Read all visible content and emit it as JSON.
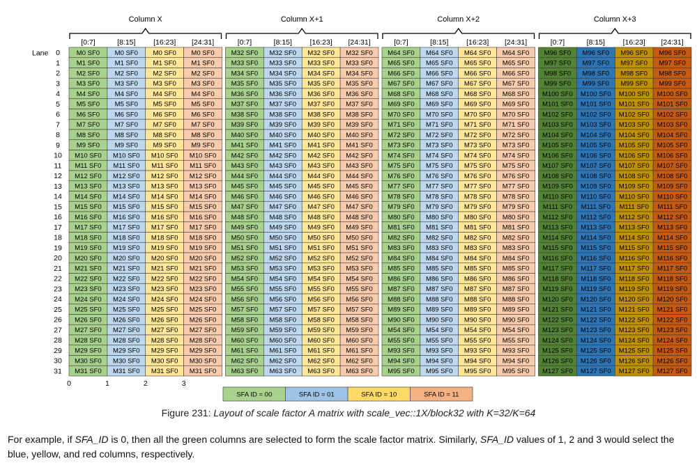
{
  "column_groups": [
    {
      "label": "Column X",
      "base": 0
    },
    {
      "label": "Column X+1",
      "base": 32
    },
    {
      "label": "Column X+2",
      "base": 64
    },
    {
      "label": "Column X+3",
      "base": 96
    }
  ],
  "sub_columns": [
    "[0:7]",
    "[8:15]",
    "[16:23]",
    "[24:31]"
  ],
  "row_label": "Lane",
  "lanes": 32,
  "cell_prefix": "M",
  "cell_suffix": " SF0",
  "row_override": {
    "group": 2,
    "start_row": 27,
    "base": 54,
    "end_row": 28
  },
  "bottom_ticks": [
    "0",
    "1",
    "2",
    "3"
  ],
  "palette": {
    "light": [
      "#a9d18e",
      "#bdd7ee",
      "#ffe699",
      "#f8cbad"
    ],
    "dark": [
      "#548235",
      "#2e75b6",
      "#bf9000",
      "#c55a11"
    ]
  },
  "legend": [
    {
      "label": "SFA ID = 00",
      "color": "#a9d18e"
    },
    {
      "label": "SFA ID = 01",
      "color": "#9dc3e6"
    },
    {
      "label": "SFA ID = 10",
      "color": "#ffd966"
    },
    {
      "label": "SFA ID = 11",
      "color": "#f4b183"
    }
  ],
  "caption": {
    "prefix": "Figure 231: ",
    "italic": "Layout of scale factor A matrix with scale_vec::1X/block32 with K=32/K=64"
  },
  "paragraph": {
    "p1": "For example, if ",
    "i1": "SFA_ID",
    "p2": " is 0, then all the green columns are selected to form the scale factor matrix. Similarly, ",
    "i2": "SFA_ID",
    "p3": " values of 1, 2 and 3 would select the blue, yellow, and red columns, respectively."
  }
}
